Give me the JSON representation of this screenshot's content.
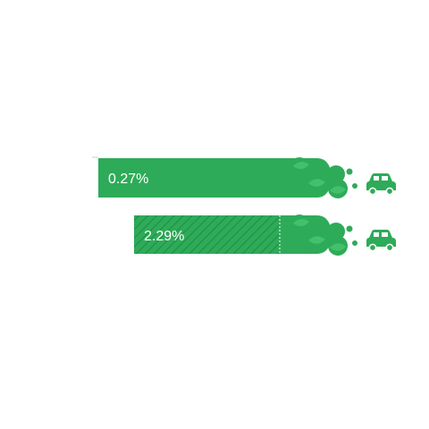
{
  "chart_data": {
    "type": "bar",
    "title": "",
    "xlabel": "",
    "ylabel": "",
    "series": [
      {
        "label": "0.27%",
        "value": 0.27,
        "pattern": "solid",
        "icon": "car-icon"
      },
      {
        "label": "2.29%",
        "value": 2.29,
        "pattern": "hatched",
        "icon": "car-icon"
      }
    ],
    "colors": {
      "bar": "#2eab59",
      "bar_dark": "#1f8f45",
      "leaf": "#43c06b",
      "puff": "#2eab59",
      "car": "#2eab59",
      "text": "#ffffff",
      "axis_tick": "#cccccc"
    }
  }
}
